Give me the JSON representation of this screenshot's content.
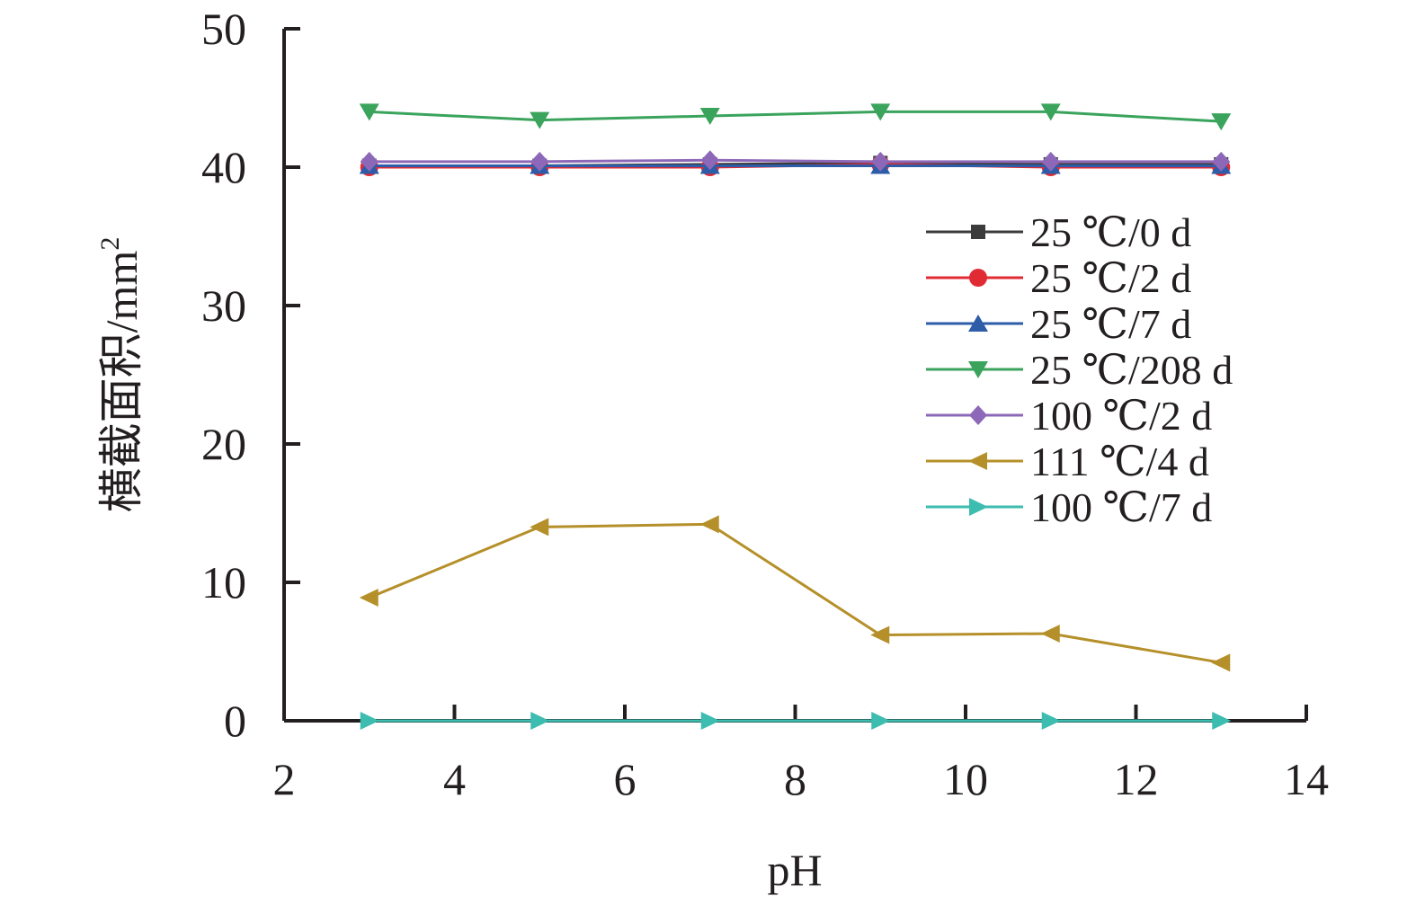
{
  "chart_data": {
    "type": "line",
    "xlabel": "pH",
    "ylabel": "横截面积/mm²",
    "ylabel_main": "横截面积/mm",
    "ylabel_sup": "2",
    "xlim": [
      2,
      14
    ],
    "ylim": [
      0,
      50
    ],
    "xticks": [
      "2",
      "4",
      "6",
      "8",
      "10",
      "12",
      "14"
    ],
    "yticks": [
      "0",
      "10",
      "20",
      "30",
      "40",
      "50"
    ],
    "grid": false,
    "legend_position": "right",
    "x": [
      3,
      5,
      7,
      9,
      11,
      13
    ],
    "series": [
      {
        "name": "25 ℃/0 d",
        "color": "#3b3b3b",
        "marker": "square",
        "values": [
          40.1,
          40.1,
          40.2,
          40.3,
          40.2,
          40.2
        ]
      },
      {
        "name": "25 ℃/2 d",
        "color": "#e02b35",
        "marker": "circle",
        "values": [
          40.0,
          40.0,
          40.0,
          40.2,
          40.0,
          40.0
        ]
      },
      {
        "name": "25 ℃/7 d",
        "color": "#2d5ca8",
        "marker": "triangle-up",
        "values": [
          40.1,
          40.1,
          40.1,
          40.1,
          40.1,
          40.1
        ]
      },
      {
        "name": "25 ℃/208 d",
        "color": "#3aa35c",
        "marker": "triangle-down",
        "values": [
          44.0,
          43.4,
          43.7,
          44.0,
          44.0,
          43.3
        ]
      },
      {
        "name": "100 ℃/2 d",
        "color": "#8d68b8",
        "marker": "diamond",
        "values": [
          40.4,
          40.4,
          40.5,
          40.4,
          40.4,
          40.4
        ]
      },
      {
        "name": "111 ℃/4 d",
        "color": "#b5902a",
        "marker": "triangle-left",
        "values": [
          8.9,
          14.0,
          14.2,
          6.2,
          6.3,
          4.2
        ]
      },
      {
        "name": "100 ℃/7 d",
        "color": "#3dbcb0",
        "marker": "triangle-right",
        "values": [
          0,
          0,
          0,
          0,
          0,
          0
        ]
      }
    ]
  }
}
